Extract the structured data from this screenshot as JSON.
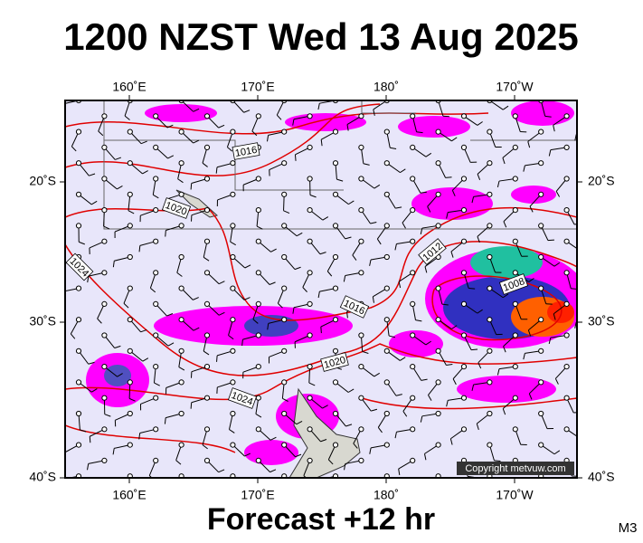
{
  "title": "1200 NZST Wed 13 Aug 2025",
  "footer": "Forecast +12 hr",
  "model": "M3",
  "copyright": "Copyright metvuw.com",
  "lon_labels": [
    "160˚E",
    "170˚E",
    "180˚",
    "170˚W"
  ],
  "lat_labels": [
    "20˚S",
    "30˚S",
    "40˚S"
  ],
  "contour_labels": [
    "1016",
    "1020",
    "1024",
    "1012",
    "1008",
    "1016",
    "1020",
    "1024"
  ]
}
